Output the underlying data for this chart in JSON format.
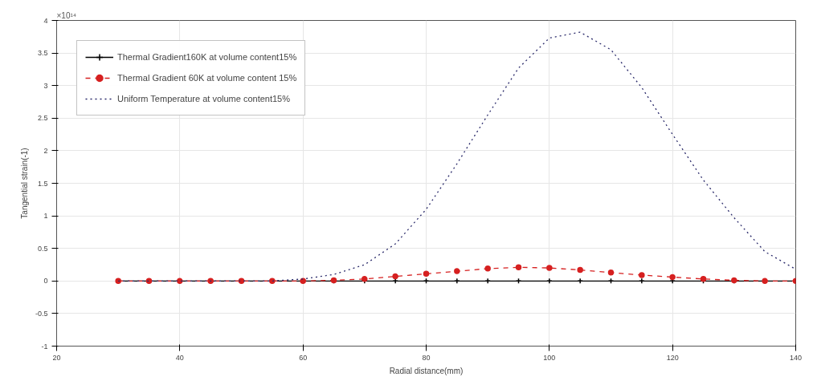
{
  "chart_data": {
    "type": "line",
    "xlabel": "Radial distance(mm)",
    "ylabel": "Tangential strain(-1)",
    "annotations": [
      "×10¹⁴"
    ],
    "x": [
      30,
      35,
      40,
      45,
      50,
      55,
      60,
      65,
      70,
      75,
      80,
      85,
      90,
      95,
      100,
      105,
      110,
      115,
      120,
      125,
      130,
      135,
      140
    ],
    "series": [
      {
        "name": "Thermal Gradient160K at volume content15%",
        "color": "#000000",
        "marker": "cross",
        "line_style": "solid",
        "values": [
          0,
          0,
          0,
          0,
          0,
          0,
          0,
          0,
          0,
          0,
          0,
          0,
          0,
          0,
          0,
          0,
          0,
          0,
          0,
          0,
          0,
          0,
          0
        ]
      },
      {
        "name": "Thermal Gradient 60K at volume content 15%",
        "color": "#d62020",
        "marker": "circle",
        "line_style": "dashed",
        "values": [
          0,
          0,
          0,
          0,
          0,
          0,
          0,
          0.01,
          0.03,
          0.07,
          0.11,
          0.15,
          0.19,
          0.21,
          0.2,
          0.17,
          0.13,
          0.09,
          0.06,
          0.03,
          0.01,
          0,
          0
        ]
      },
      {
        "name": "Uniform Temperature at volume content15%",
        "color": "#2b2b6b",
        "marker": "none",
        "line_style": "dotted",
        "values": [
          0,
          0,
          0,
          0,
          0,
          0,
          0.03,
          0.1,
          0.25,
          0.57,
          1.1,
          1.8,
          2.55,
          3.27,
          3.73,
          3.82,
          3.55,
          2.97,
          2.25,
          1.55,
          0.97,
          0.45,
          0.18
        ]
      }
    ],
    "xlim": [
      20,
      140
    ],
    "xticks": [
      20,
      40,
      60,
      80,
      100,
      120,
      140
    ],
    "ylim": [
      -1,
      4
    ],
    "yticks": [
      -1,
      -0.5,
      0,
      0.5,
      1,
      1.5,
      2,
      2.5,
      3,
      3.5,
      4
    ],
    "grid": true,
    "legend": "top left"
  }
}
